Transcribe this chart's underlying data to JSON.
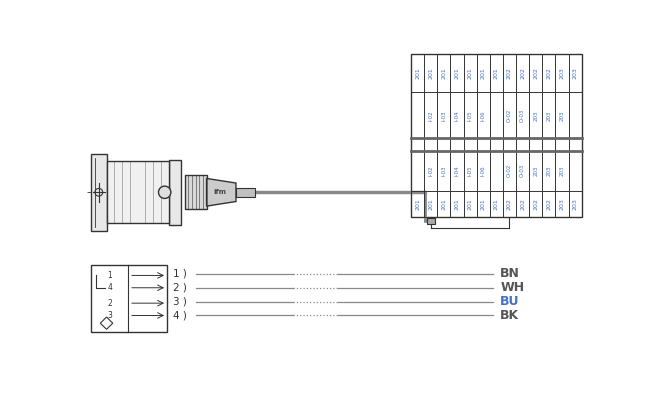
{
  "bg_color": "#ffffff",
  "lc": "#555555",
  "lc_dark": "#333333",
  "bc": "#4472c4",
  "grid_top_labels": [
    "201",
    "201",
    "201",
    "201",
    "201",
    "201",
    "201",
    "202",
    "202",
    "202",
    "202",
    "203",
    "203"
  ],
  "grid_mid_labels_present": [
    false,
    true,
    true,
    true,
    true,
    true,
    false,
    true,
    true,
    true,
    true,
    true,
    false
  ],
  "grid_mid_vals": [
    "",
    "I-02",
    "I-03",
    "I-04",
    "I-05",
    "I-06",
    "",
    "O-02",
    "O-03",
    "203",
    "203",
    "203",
    ""
  ],
  "grid_bot_labels": [
    "201",
    "201",
    "201",
    "201",
    "201",
    "201",
    "201",
    "202",
    "202",
    "202",
    "202",
    "203",
    "203"
  ],
  "num_cols": 13,
  "wire_labels": [
    "BN",
    "WH",
    "BU",
    "BK"
  ],
  "wire_numbers": [
    "1",
    "2",
    "3",
    "4"
  ],
  "wire_label_colors": [
    "#555555",
    "#555555",
    "#4472c4",
    "#555555"
  ]
}
